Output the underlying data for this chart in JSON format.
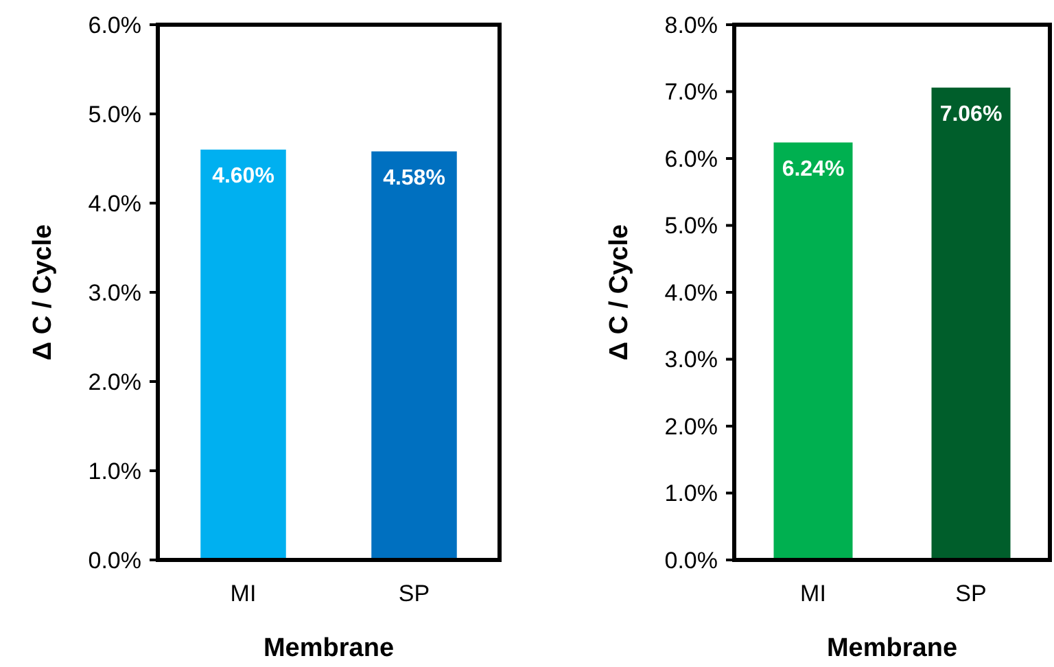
{
  "chart_data": [
    {
      "type": "bar",
      "xlabel": "Membrane",
      "ylabel": "Δ C / Cycle",
      "categories": [
        "MI",
        "SP"
      ],
      "values": [
        4.6,
        4.58
      ],
      "colors": [
        "#00b0f0",
        "#0070c0"
      ],
      "value_labels": [
        "4.60%",
        "4.58%"
      ],
      "ylim": [
        0,
        6
      ],
      "yticks": [
        {
          "value": 0,
          "label": "0.0%"
        },
        {
          "value": 1,
          "label": "1.0%"
        },
        {
          "value": 2,
          "label": "2.0%"
        },
        {
          "value": 3,
          "label": "3.0%"
        },
        {
          "value": 4,
          "label": "4.0%"
        },
        {
          "value": 5,
          "label": "5.0%"
        },
        {
          "value": 6,
          "label": "6.0%"
        }
      ],
      "grid": false
    },
    {
      "type": "bar",
      "xlabel": "Membrane",
      "ylabel": "Δ C / Cycle",
      "categories": [
        "MI",
        "SP"
      ],
      "values": [
        6.24,
        7.06
      ],
      "colors": [
        "#00b050",
        "#005e2b"
      ],
      "value_labels": [
        "6.24%",
        "7.06%"
      ],
      "ylim": [
        0,
        8
      ],
      "yticks": [
        {
          "value": 0,
          "label": "0.0%"
        },
        {
          "value": 1,
          "label": "1.0%"
        },
        {
          "value": 2,
          "label": "2.0%"
        },
        {
          "value": 3,
          "label": "3.0%"
        },
        {
          "value": 4,
          "label": "4.0%"
        },
        {
          "value": 5,
          "label": "5.0%"
        },
        {
          "value": 6,
          "label": "6.0%"
        },
        {
          "value": 7,
          "label": "7.0%"
        },
        {
          "value": 8,
          "label": "8.0%"
        }
      ],
      "grid": false
    }
  ]
}
